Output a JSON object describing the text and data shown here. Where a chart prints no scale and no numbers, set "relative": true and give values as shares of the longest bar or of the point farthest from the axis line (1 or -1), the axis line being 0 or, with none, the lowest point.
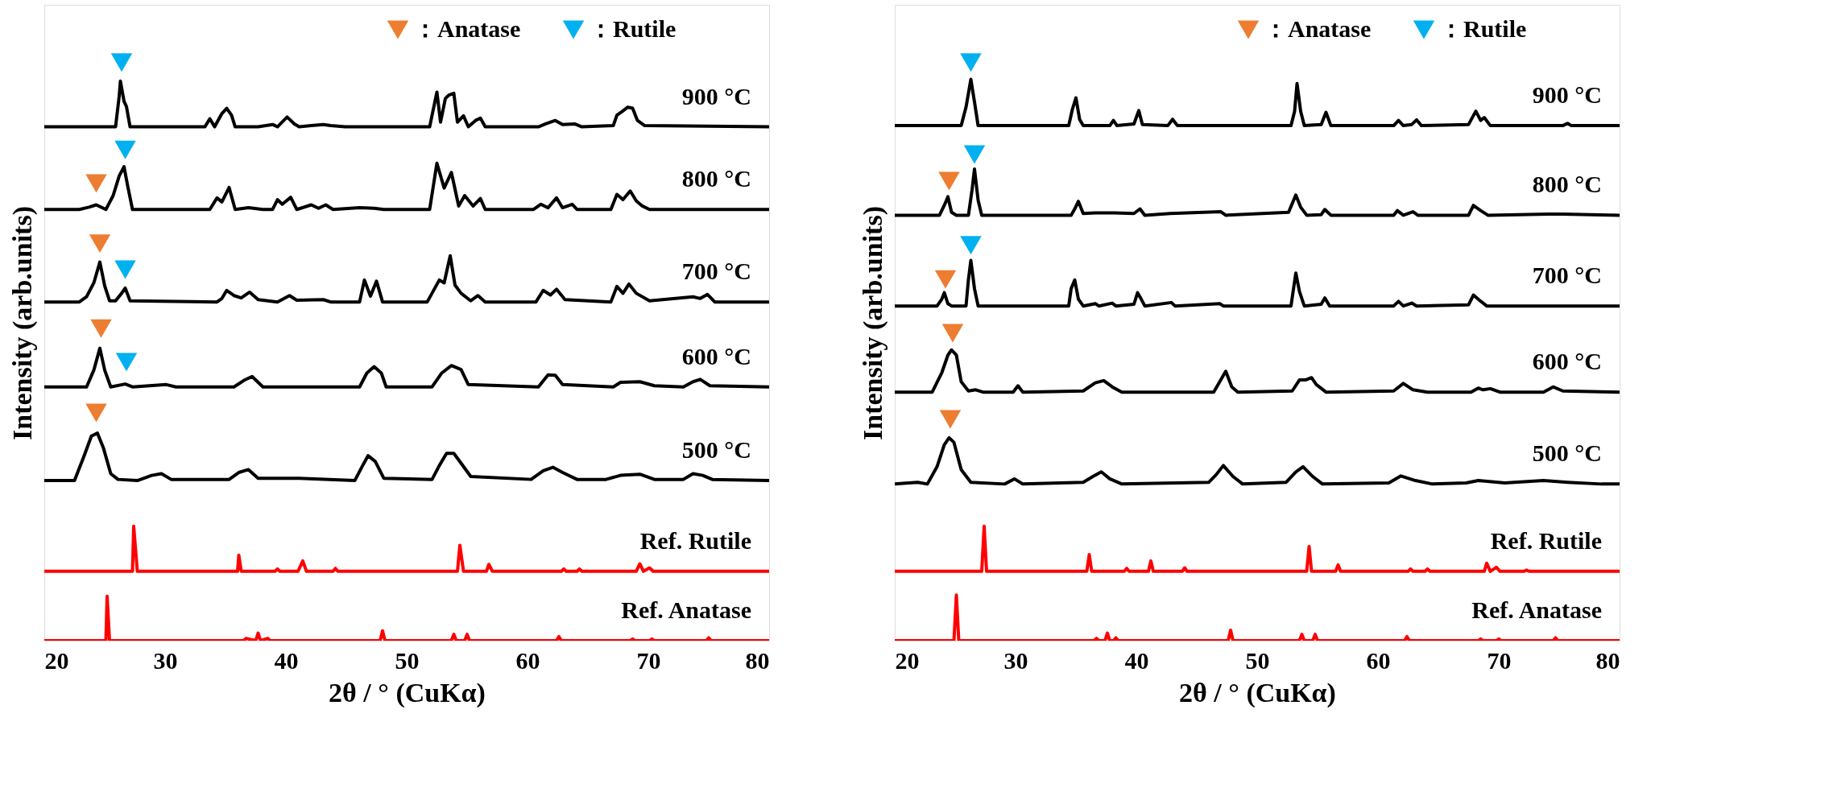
{
  "chart_data": [
    {
      "type": "line",
      "xlabel": "2θ / °  (CuKα)",
      "ylabel": "Intensity (arb.units)",
      "xlim": [
        20,
        80
      ],
      "xticks": [
        20,
        30,
        40,
        50,
        60,
        70,
        80
      ],
      "relative": true,
      "grid": false,
      "tick_labels": "x",
      "legend": "top right",
      "line_style": "solid",
      "series": [
        {
          "name": "900 °C",
          "color": "#000000",
          "x": [
            20.0,
            25.9,
            26.2,
            26.3,
            26.6,
            26.8,
            27.1,
            33.3,
            33.7,
            34.1,
            34.7,
            35.1,
            35.5,
            35.8,
            37.7,
            38.9,
            39.3,
            40.1,
            40.7,
            41.1,
            42.1,
            43.1,
            43.7,
            44.9,
            51.9,
            52.5,
            52.8,
            53.2,
            53.5,
            53.9,
            54.2,
            54.7,
            55.1,
            55.7,
            56.1,
            56.5,
            60.9,
            61.5,
            62.3,
            62.9,
            63.9,
            64.5,
            67.1,
            67.4,
            67.8,
            68.3,
            68.7,
            69.1,
            69.7,
            80.0
          ],
          "values": [
            0.889,
            0.889,
            0.942,
            0.968,
            0.933,
            0.924,
            0.889,
            0.889,
            0.903,
            0.889,
            0.912,
            0.921,
            0.909,
            0.889,
            0.889,
            0.893,
            0.889,
            0.906,
            0.894,
            0.889,
            0.891,
            0.893,
            0.891,
            0.889,
            0.889,
            0.949,
            0.897,
            0.938,
            0.944,
            0.947,
            0.897,
            0.908,
            0.889,
            0.9,
            0.904,
            0.889,
            0.889,
            0.894,
            0.9,
            0.893,
            0.894,
            0.889,
            0.891,
            0.909,
            0.915,
            0.923,
            0.921,
            0.9,
            0.891,
            0.889
          ]
        },
        {
          "name": "800 °C",
          "color": "#000000",
          "x": [
            20.0,
            22.9,
            23.7,
            24.3,
            25.1,
            25.7,
            26.2,
            26.6,
            26.9,
            27.3,
            33.7,
            34.3,
            34.7,
            35.3,
            35.8,
            36.9,
            38.1,
            38.9,
            39.3,
            39.7,
            40.4,
            40.9,
            42.1,
            42.7,
            43.3,
            43.9,
            46.1,
            47.3,
            48.1,
            51.9,
            52.5,
            53.1,
            53.7,
            54.3,
            54.8,
            55.5,
            56.1,
            56.5,
            60.5,
            61.1,
            61.7,
            62.4,
            62.9,
            63.7,
            64.1,
            66.9,
            67.4,
            67.9,
            68.5,
            69.0,
            69.5,
            70.1,
            80.0
          ],
          "values": [
            0.746,
            0.746,
            0.75,
            0.754,
            0.746,
            0.77,
            0.804,
            0.82,
            0.787,
            0.746,
            0.746,
            0.766,
            0.759,
            0.784,
            0.746,
            0.749,
            0.746,
            0.746,
            0.763,
            0.755,
            0.767,
            0.746,
            0.754,
            0.748,
            0.754,
            0.746,
            0.749,
            0.748,
            0.746,
            0.746,
            0.826,
            0.783,
            0.81,
            0.752,
            0.77,
            0.752,
            0.765,
            0.746,
            0.746,
            0.755,
            0.749,
            0.766,
            0.749,
            0.755,
            0.746,
            0.746,
            0.772,
            0.763,
            0.778,
            0.761,
            0.752,
            0.746,
            0.746
          ]
        },
        {
          "name": "700 °C",
          "color": "#000000",
          "x": [
            20.0,
            22.9,
            23.5,
            24.1,
            24.6,
            25.0,
            25.4,
            25.9,
            26.4,
            26.7,
            27.1,
            34.3,
            34.7,
            35.1,
            35.7,
            36.3,
            37.0,
            37.7,
            39.3,
            40.3,
            40.9,
            43.1,
            43.7,
            46.1,
            46.5,
            47.0,
            47.5,
            48.0,
            51.7,
            52.7,
            53.1,
            53.6,
            54.0,
            54.5,
            55.3,
            55.9,
            56.5,
            60.7,
            61.3,
            61.9,
            62.4,
            63.1,
            66.9,
            67.4,
            67.9,
            68.4,
            69.0,
            70.1,
            73.7,
            74.3,
            74.9,
            75.5,
            80.0
          ],
          "values": [
            0.586,
            0.586,
            0.595,
            0.619,
            0.655,
            0.614,
            0.588,
            0.588,
            0.601,
            0.61,
            0.588,
            0.586,
            0.592,
            0.606,
            0.597,
            0.593,
            0.603,
            0.59,
            0.586,
            0.597,
            0.589,
            0.59,
            0.586,
            0.586,
            0.624,
            0.596,
            0.622,
            0.586,
            0.586,
            0.624,
            0.619,
            0.666,
            0.615,
            0.601,
            0.588,
            0.597,
            0.586,
            0.586,
            0.606,
            0.598,
            0.608,
            0.59,
            0.586,
            0.613,
            0.601,
            0.617,
            0.601,
            0.588,
            0.595,
            0.592,
            0.599,
            0.586,
            0.586
          ]
        },
        {
          "name": "600 °C",
          "color": "#000000",
          "x": [
            20.0,
            23.5,
            24.1,
            24.6,
            25.0,
            25.5,
            26.7,
            27.3,
            30.1,
            30.9,
            35.7,
            36.5,
            37.2,
            38.1,
            46.1,
            46.7,
            47.3,
            47.9,
            48.3,
            52.1,
            52.9,
            53.7,
            54.5,
            55.1,
            60.9,
            61.7,
            62.3,
            62.9,
            67.1,
            67.7,
            69.3,
            70.5,
            72.9,
            73.7,
            74.3,
            75.1,
            80.0
          ],
          "values": [
            0.439,
            0.439,
            0.468,
            0.506,
            0.468,
            0.439,
            0.444,
            0.439,
            0.443,
            0.439,
            0.439,
            0.45,
            0.457,
            0.439,
            0.439,
            0.463,
            0.474,
            0.463,
            0.439,
            0.439,
            0.463,
            0.476,
            0.469,
            0.443,
            0.439,
            0.46,
            0.459,
            0.443,
            0.439,
            0.447,
            0.448,
            0.441,
            0.439,
            0.448,
            0.452,
            0.441,
            0.439
          ]
        },
        {
          "name": "500 °C",
          "color": "#000000",
          "x": [
            20.0,
            22.5,
            23.3,
            23.9,
            24.4,
            24.9,
            25.5,
            26.1,
            27.7,
            28.9,
            29.7,
            30.5,
            35.3,
            36.1,
            36.9,
            37.7,
            41.1,
            45.7,
            46.3,
            46.8,
            47.4,
            48.1,
            52.1,
            52.7,
            53.3,
            53.9,
            54.5,
            55.3,
            60.3,
            61.3,
            62.1,
            62.9,
            64.1,
            66.5,
            67.7,
            69.3,
            70.5,
            72.9,
            73.7,
            74.5,
            75.3,
            80.0
          ],
          "values": [
            0.277,
            0.277,
            0.32,
            0.354,
            0.359,
            0.333,
            0.289,
            0.279,
            0.277,
            0.286,
            0.289,
            0.279,
            0.279,
            0.291,
            0.296,
            0.281,
            0.281,
            0.277,
            0.301,
            0.32,
            0.31,
            0.281,
            0.279,
            0.303,
            0.324,
            0.324,
            0.307,
            0.284,
            0.279,
            0.294,
            0.3,
            0.291,
            0.279,
            0.279,
            0.286,
            0.288,
            0.279,
            0.279,
            0.289,
            0.286,
            0.279,
            0.277
          ]
        },
        {
          "name": "Ref. Rutile",
          "color": "#ff0000",
          "x": [
            20.0,
            27.3,
            27.4,
            27.7,
            36.0,
            36.1,
            36.3,
            39.1,
            39.3,
            39.5,
            41.0,
            41.4,
            41.7,
            43.9,
            44.1,
            44.3,
            54.2,
            54.4,
            54.7,
            56.6,
            56.8,
            57.1,
            62.8,
            63.0,
            63.2,
            64.1,
            64.3,
            64.5,
            69.0,
            69.3,
            69.6,
            70.1,
            70.4,
            80.0
          ],
          "values": [
            0.12,
            0.12,
            0.198,
            0.12,
            0.12,
            0.148,
            0.12,
            0.12,
            0.124,
            0.12,
            0.12,
            0.138,
            0.12,
            0.12,
            0.125,
            0.12,
            0.12,
            0.165,
            0.12,
            0.12,
            0.132,
            0.12,
            0.12,
            0.124,
            0.12,
            0.12,
            0.124,
            0.12,
            0.12,
            0.133,
            0.12,
            0.126,
            0.12,
            0.12
          ]
        },
        {
          "name": "Ref. Anatase",
          "color": "#ff0000",
          "x": [
            20.0,
            25.1,
            25.2,
            25.4,
            36.5,
            36.7,
            37.5,
            37.7,
            37.9,
            38.5,
            38.7,
            47.8,
            48.0,
            48.2,
            53.7,
            53.9,
            54.1,
            54.8,
            55.0,
            55.2,
            62.4,
            62.6,
            62.8,
            68.5,
            68.7,
            68.9,
            70.1,
            70.3,
            70.5,
            74.8,
            75.0,
            75.2,
            80.0
          ],
          "values": [
            0.0,
            0.0,
            0.077,
            0.0,
            0.0,
            0.004,
            0.0,
            0.013,
            0.0,
            0.004,
            0.0,
            0.0,
            0.017,
            0.0,
            0.0,
            0.011,
            0.0,
            0.0,
            0.011,
            0.0,
            0.0,
            0.007,
            0.0,
            0.0,
            0.003,
            0.0,
            0.0,
            0.003,
            0.0,
            0.0,
            0.005,
            0.0,
            0.0
          ]
        },
        {
          "type": "scatter",
          "name": "：Anatase",
          "color": "#ed7d31",
          "marker": "triangle",
          "x": [
            24.3,
            24.6,
            24.7,
            24.3
          ],
          "values": [
            0.791,
            0.687,
            0.54,
            0.394
          ]
        },
        {
          "type": "scatter",
          "name": "：Rutile",
          "color": "#00b0f0",
          "marker": "triangle",
          "x": [
            26.4,
            26.7,
            26.7,
            26.8
          ],
          "values": [
            1.0,
            0.849,
            0.642,
            0.482
          ]
        }
      ]
    },
    {
      "type": "line",
      "xlabel": "2θ / °  (CuKα)",
      "ylabel": "Intensity (arb.units)",
      "xlim": [
        20,
        80
      ],
      "xticks": [
        20,
        30,
        40,
        50,
        60,
        70,
        80
      ],
      "relative": true,
      "grid": false,
      "tick_labels": "x",
      "legend": "top right",
      "line_style": "solid",
      "series": [
        {
          "name": "900 °C",
          "color": "#000000",
          "x": [
            20.0,
            25.5,
            25.9,
            26.3,
            26.6,
            26.9,
            34.4,
            34.7,
            35.0,
            35.3,
            35.6,
            37.8,
            38.1,
            38.4,
            39.8,
            40.2,
            40.5,
            42.6,
            43.0,
            43.4,
            52.8,
            53.1,
            53.3,
            53.6,
            53.9,
            55.3,
            55.7,
            56.1,
            61.3,
            61.7,
            62.1,
            62.8,
            63.2,
            63.6,
            67.5,
            68.1,
            68.5,
            68.8,
            69.3,
            75.3,
            75.7,
            76.0,
            80.0
          ],
          "values": [
            0.891,
            0.891,
            0.923,
            0.971,
            0.932,
            0.891,
            0.891,
            0.919,
            0.939,
            0.902,
            0.891,
            0.891,
            0.9,
            0.891,
            0.894,
            0.917,
            0.893,
            0.891,
            0.902,
            0.891,
            0.891,
            0.916,
            0.964,
            0.916,
            0.891,
            0.893,
            0.914,
            0.891,
            0.891,
            0.9,
            0.891,
            0.893,
            0.901,
            0.891,
            0.893,
            0.916,
            0.9,
            0.905,
            0.891,
            0.891,
            0.895,
            0.891,
            0.891
          ]
        },
        {
          "name": "800 °C",
          "color": "#000000",
          "x": [
            20.0,
            23.7,
            24.1,
            24.4,
            24.7,
            25.1,
            26.1,
            26.4,
            26.6,
            26.9,
            27.2,
            34.6,
            34.9,
            35.2,
            35.6,
            36.6,
            38.2,
            39.8,
            40.3,
            40.7,
            42.8,
            47.0,
            47.4,
            52.6,
            53.2,
            53.6,
            54.1,
            55.3,
            55.6,
            56.1,
            61.3,
            61.6,
            62.1,
            62.9,
            63.3,
            67.5,
            67.9,
            68.5,
            69.1,
            74.1,
            75.3,
            80.0
          ],
          "values": [
            0.736,
            0.736,
            0.753,
            0.768,
            0.741,
            0.736,
            0.736,
            0.78,
            0.816,
            0.762,
            0.736,
            0.736,
            0.747,
            0.76,
            0.739,
            0.74,
            0.74,
            0.739,
            0.747,
            0.736,
            0.739,
            0.742,
            0.736,
            0.741,
            0.771,
            0.75,
            0.736,
            0.737,
            0.746,
            0.736,
            0.736,
            0.744,
            0.736,
            0.742,
            0.736,
            0.736,
            0.753,
            0.744,
            0.736,
            0.738,
            0.738,
            0.736
          ]
        },
        {
          "name": "700 °C",
          "color": "#000000",
          "x": [
            20.0,
            23.5,
            23.9,
            24.1,
            24.4,
            24.7,
            25.9,
            26.1,
            26.3,
            26.6,
            26.9,
            34.4,
            34.6,
            34.9,
            35.2,
            35.6,
            36.6,
            36.9,
            38.0,
            38.3,
            39.8,
            40.1,
            40.4,
            40.7,
            42.9,
            43.2,
            46.9,
            47.2,
            52.8,
            53.2,
            53.5,
            53.9,
            55.3,
            55.6,
            56.0,
            61.3,
            61.7,
            62.1,
            62.8,
            63.2,
            67.5,
            67.9,
            68.4,
            69.0,
            80.0
          ],
          "values": [
            0.579,
            0.579,
            0.591,
            0.602,
            0.583,
            0.579,
            0.579,
            0.625,
            0.658,
            0.609,
            0.579,
            0.579,
            0.609,
            0.624,
            0.591,
            0.579,
            0.583,
            0.579,
            0.584,
            0.579,
            0.582,
            0.602,
            0.591,
            0.579,
            0.585,
            0.579,
            0.583,
            0.579,
            0.579,
            0.636,
            0.604,
            0.579,
            0.582,
            0.593,
            0.579,
            0.579,
            0.587,
            0.579,
            0.584,
            0.579,
            0.581,
            0.598,
            0.589,
            0.579,
            0.579
          ]
        },
        {
          "name": "600 °C",
          "color": "#000000",
          "x": [
            20.0,
            23.1,
            23.9,
            24.4,
            24.7,
            25.1,
            25.5,
            26.1,
            26.7,
            27.3,
            29.8,
            30.2,
            30.6,
            35.6,
            36.6,
            37.3,
            38.0,
            38.8,
            46.4,
            46.9,
            47.4,
            47.9,
            48.4,
            52.9,
            53.5,
            54.0,
            54.5,
            54.9,
            55.7,
            61.3,
            62.1,
            62.9,
            64.1,
            67.7,
            68.3,
            68.7,
            69.3,
            70.1,
            73.7,
            74.5,
            75.3,
            80.0
          ],
          "values": [
            0.43,
            0.43,
            0.464,
            0.494,
            0.503,
            0.494,
            0.448,
            0.432,
            0.434,
            0.43,
            0.43,
            0.441,
            0.43,
            0.432,
            0.446,
            0.45,
            0.439,
            0.43,
            0.43,
            0.448,
            0.466,
            0.439,
            0.43,
            0.432,
            0.451,
            0.451,
            0.455,
            0.443,
            0.43,
            0.432,
            0.445,
            0.434,
            0.43,
            0.43,
            0.437,
            0.434,
            0.436,
            0.43,
            0.43,
            0.439,
            0.432,
            0.43
          ]
        },
        {
          "name": "500 °C",
          "color": "#000000",
          "x": [
            20.0,
            21.9,
            22.7,
            23.5,
            24.1,
            24.5,
            24.9,
            25.5,
            26.3,
            29.1,
            29.9,
            30.6,
            35.6,
            36.4,
            37.1,
            37.8,
            38.8,
            46.0,
            46.6,
            47.2,
            48.0,
            48.8,
            52.4,
            53.2,
            53.8,
            54.6,
            55.4,
            60.9,
            61.9,
            63.1,
            64.5,
            67.3,
            68.3,
            70.5,
            73.7,
            75.7,
            78.5,
            80.0
          ],
          "values": [
            0.271,
            0.274,
            0.271,
            0.301,
            0.339,
            0.351,
            0.343,
            0.296,
            0.274,
            0.271,
            0.28,
            0.271,
            0.274,
            0.284,
            0.292,
            0.28,
            0.271,
            0.274,
            0.287,
            0.303,
            0.284,
            0.271,
            0.274,
            0.292,
            0.301,
            0.284,
            0.271,
            0.273,
            0.285,
            0.277,
            0.271,
            0.273,
            0.277,
            0.273,
            0.277,
            0.274,
            0.271,
            0.271
          ]
        },
        {
          "name": "Ref. Rutile",
          "color": "#ff0000",
          "x": [
            20.0,
            27.2,
            27.4,
            27.6,
            35.9,
            36.1,
            36.3,
            39.0,
            39.2,
            39.4,
            41.0,
            41.2,
            41.4,
            43.8,
            44.0,
            44.2,
            54.1,
            54.3,
            54.5,
            56.5,
            56.7,
            56.9,
            62.5,
            62.7,
            62.9,
            63.9,
            64.1,
            64.3,
            68.8,
            69.0,
            69.3,
            69.8,
            70.1,
            72.1,
            72.3,
            72.5,
            80.0
          ],
          "values": [
            0.12,
            0.12,
            0.198,
            0.12,
            0.12,
            0.149,
            0.12,
            0.12,
            0.125,
            0.12,
            0.12,
            0.138,
            0.12,
            0.12,
            0.126,
            0.12,
            0.12,
            0.163,
            0.12,
            0.12,
            0.131,
            0.12,
            0.12,
            0.124,
            0.12,
            0.12,
            0.124,
            0.12,
            0.12,
            0.134,
            0.12,
            0.127,
            0.12,
            0.12,
            0.122,
            0.12,
            0.12
          ]
        },
        {
          "name": "Ref. Anatase",
          "color": "#ff0000",
          "x": [
            20.0,
            24.9,
            25.1,
            25.3,
            36.5,
            36.7,
            36.9,
            37.4,
            37.6,
            37.8,
            38.1,
            38.3,
            38.5,
            47.6,
            47.8,
            48.0,
            53.5,
            53.7,
            53.9,
            54.6,
            54.8,
            55.0,
            62.2,
            62.4,
            62.6,
            68.3,
            68.5,
            68.7,
            69.8,
            70.0,
            70.2,
            74.5,
            74.7,
            74.9,
            80.0
          ],
          "values": [
            0.0,
            0.0,
            0.079,
            0.0,
            0.0,
            0.004,
            0.0,
            0.0,
            0.013,
            0.0,
            0.0,
            0.005,
            0.0,
            0.0,
            0.018,
            0.0,
            0.0,
            0.011,
            0.0,
            0.0,
            0.011,
            0.0,
            0.0,
            0.007,
            0.0,
            0.0,
            0.003,
            0.0,
            0.0,
            0.003,
            0.0,
            0.0,
            0.005,
            0.0,
            0.0
          ]
        },
        {
          "type": "scatter",
          "name": "：Anatase",
          "color": "#ed7d31",
          "marker": "triangle",
          "x": [
            24.5,
            24.2,
            24.8,
            24.6
          ],
          "values": [
            0.795,
            0.625,
            0.532,
            0.383
          ]
        },
        {
          "type": "scatter",
          "name": "：Rutile",
          "color": "#00b0f0",
          "marker": "triangle",
          "x": [
            26.3,
            26.6,
            26.3
          ],
          "values": [
            1.0,
            0.841,
            0.684
          ]
        }
      ]
    }
  ]
}
